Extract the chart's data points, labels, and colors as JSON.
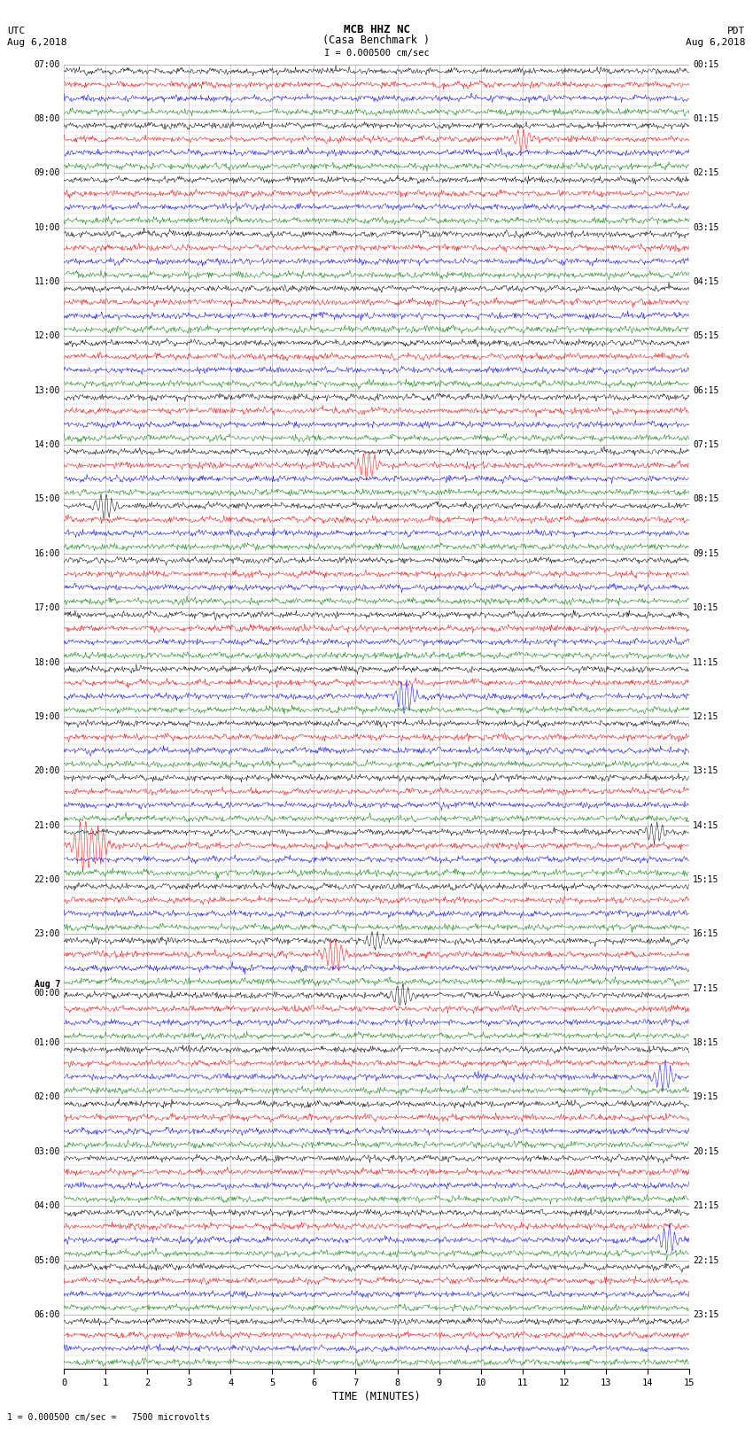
{
  "title_line1": "MCB HHZ NC",
  "title_line2": "(Casa Benchmark )",
  "scale_text": "I = 0.000500 cm/sec",
  "bottom_text": "1 = 0.000500 cm/sec =   7500 microvolts",
  "utc_label": "UTC",
  "utc_date": "Aug 6,2018",
  "pdt_label": "PDT",
  "pdt_date": "Aug 6,2018",
  "xlabel": "TIME (MINUTES)",
  "xmin": 0,
  "xmax": 15,
  "xticks": [
    0,
    1,
    2,
    3,
    4,
    5,
    6,
    7,
    8,
    9,
    10,
    11,
    12,
    13,
    14,
    15
  ],
  "background_color": "#ffffff",
  "trace_colors": [
    "black",
    "red",
    "blue",
    "green"
  ],
  "grid_color": "#888888",
  "utc_times": [
    "07:00",
    "08:00",
    "09:00",
    "10:00",
    "11:00",
    "12:00",
    "13:00",
    "14:00",
    "15:00",
    "16:00",
    "17:00",
    "18:00",
    "19:00",
    "20:00",
    "21:00",
    "22:00",
    "23:00",
    "Aug 7\n00:00",
    "01:00",
    "02:00",
    "03:00",
    "04:00",
    "05:00",
    "06:00"
  ],
  "pdt_times": [
    "00:15",
    "01:15",
    "02:15",
    "03:15",
    "04:15",
    "05:15",
    "06:15",
    "07:15",
    "08:15",
    "09:15",
    "10:15",
    "11:15",
    "12:15",
    "13:15",
    "14:15",
    "15:15",
    "16:15",
    "17:15",
    "18:15",
    "19:15",
    "20:15",
    "21:15",
    "22:15",
    "23:15"
  ],
  "num_hour_rows": 24,
  "traces_per_hour": 4,
  "noise_scale": 0.25,
  "fig_width": 8.5,
  "fig_height": 16.13,
  "dpi": 100,
  "events": [
    {
      "hour": 1,
      "trace": 1,
      "minute": 11.0,
      "amp": 3.0
    },
    {
      "hour": 7,
      "trace": 1,
      "minute": 7.3,
      "amp": 4.0
    },
    {
      "hour": 8,
      "trace": 0,
      "minute": 1.0,
      "amp": 3.5
    },
    {
      "hour": 11,
      "trace": 2,
      "minute": 8.2,
      "amp": 5.0
    },
    {
      "hour": 14,
      "trace": 0,
      "minute": 14.2,
      "amp": 3.0
    },
    {
      "hour": 14,
      "trace": 1,
      "minute": 0.5,
      "amp": 8.0
    },
    {
      "hour": 14,
      "trace": 1,
      "minute": 0.8,
      "amp": 6.0
    },
    {
      "hour": 16,
      "trace": 0,
      "minute": 7.5,
      "amp": 3.0
    },
    {
      "hour": 16,
      "trace": 1,
      "minute": 6.5,
      "amp": 5.0
    },
    {
      "hour": 17,
      "trace": 0,
      "minute": 8.1,
      "amp": 3.0
    },
    {
      "hour": 18,
      "trace": 2,
      "minute": 14.4,
      "amp": 4.0
    },
    {
      "hour": 21,
      "trace": 2,
      "minute": 14.5,
      "amp": 4.0
    }
  ]
}
